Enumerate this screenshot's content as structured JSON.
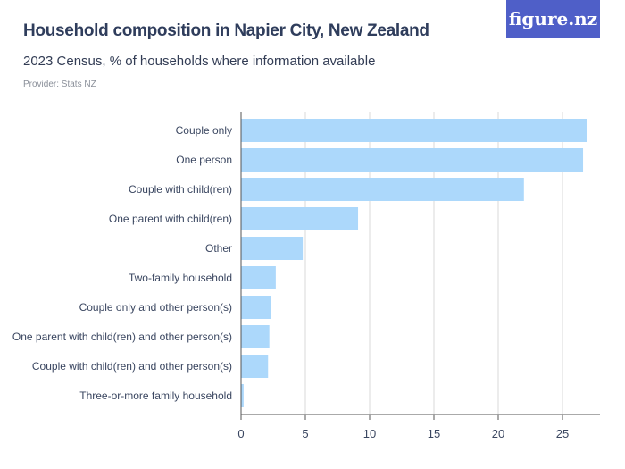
{
  "logo": "figure.nz",
  "chart_data": {
    "type": "bar",
    "orientation": "horizontal",
    "title": "Household composition in Napier City, New Zealand",
    "subtitle": "2023 Census, % of households where information available",
    "provider": "Provider: Stats NZ",
    "categories": [
      "Couple only",
      "One person",
      "Couple with child(ren)",
      "One parent with child(ren)",
      "Other",
      "Two-family household",
      "Couple only and other person(s)",
      "One parent with child(ren) and other person(s)",
      "Couple with child(ren) and other person(s)",
      "Three-or-more family household"
    ],
    "values": [
      26.9,
      26.6,
      22.0,
      9.1,
      4.8,
      2.7,
      2.3,
      2.2,
      2.1,
      0.2
    ],
    "xlim": [
      0,
      27.9
    ],
    "xticks": [
      "0",
      "5",
      "10",
      "15",
      "20",
      "25"
    ],
    "grid": true,
    "bar_color": "#acd8fb"
  }
}
